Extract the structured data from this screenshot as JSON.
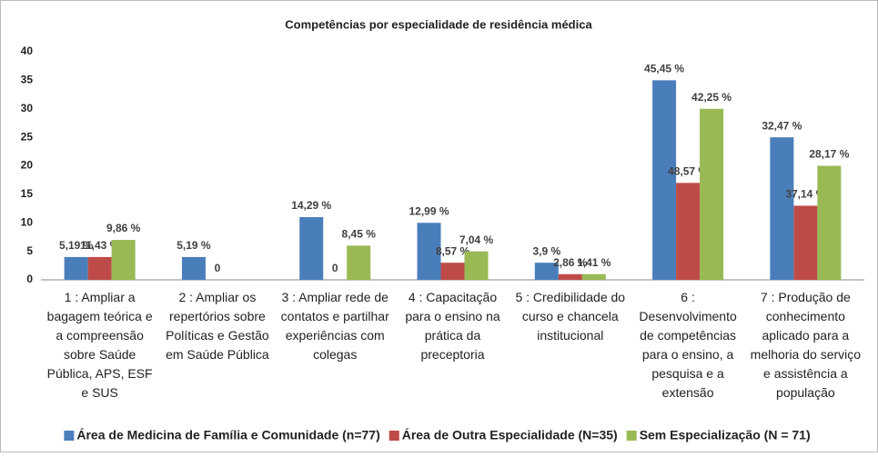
{
  "chart_data": {
    "type": "bar",
    "title": "Competências  por especialidade de residência médica",
    "categories": [
      "1 : Ampliar a bagagem teórica e a compreensão sobre Saúde Pública, APS, ESF e SUS",
      "2 : Ampliar os repertórios sobre Políticas e Gestão em Saúde Pública",
      "3 : Ampliar rede de contatos e partilhar experiências com colegas",
      "4 : Capacitação para o ensino na prática da preceptoria",
      "5 : Credibilidade do curso e chancela institucional",
      "6 : Desenvolvimento de competências para o ensino, a pesquisa e a extensão",
      "7 : Produção de conhecimento aplicado para a melhoria do serviço e assistência a população"
    ],
    "series": [
      {
        "name": "Área de Medicina de Família e Comunidade (n=77)",
        "color": "#4a7ebb",
        "values": [
          4,
          4,
          11,
          10,
          3,
          35,
          25
        ],
        "data_labels": [
          "5,19 %",
          "5,19 %",
          "14,29 %",
          "12,99 %",
          "3,9 %",
          "45,45 %",
          "32,47 %"
        ]
      },
      {
        "name": "Área de Outra Especialidade (N=35)",
        "color": "#be4b48",
        "values": [
          4,
          0,
          0,
          3,
          1,
          17,
          13
        ],
        "data_labels": [
          "11,43 %",
          "0",
          "0",
          "8,57 %",
          "2,86 %",
          "48,57 %",
          "37,14 %"
        ]
      },
      {
        "name": "Sem Especialização (N = 71)",
        "color": "#98b954",
        "values": [
          7,
          0,
          6,
          5,
          1,
          30,
          20
        ],
        "data_labels": [
          "9,86 %",
          null,
          "8,45 %",
          "7,04 %",
          "1,41 %",
          "42,25 %",
          "28,17 %"
        ]
      }
    ],
    "ylim": [
      0,
      40
    ],
    "yticks": [
      0,
      5,
      10,
      15,
      20,
      25,
      30,
      35,
      40
    ],
    "grid": false,
    "legend": "bottom"
  }
}
